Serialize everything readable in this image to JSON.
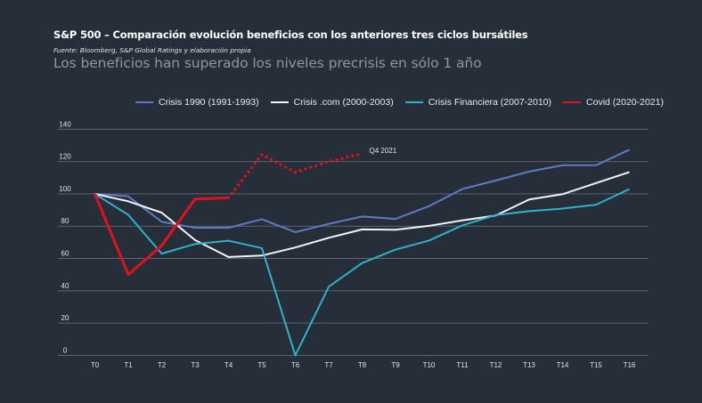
{
  "header": {
    "title": "S&P 500 – Comparación evolución beneficios con los anteriores tres ciclos bursátiles",
    "source": "Fuente: Bloomberg, S&P Global Ratings y elaboración propia",
    "subtitle": "Los beneficios han superado los niveles precrisis en sólo 1 año"
  },
  "chart_data": {
    "type": "line",
    "title": "S&P 500 – Comparación evolución beneficios con los anteriores tres ciclos bursátiles",
    "subtitle": "Los beneficios han superado los niveles precrisis en sólo 1 año",
    "xlabel": "",
    "ylabel": "",
    "categories": [
      "T0",
      "T1",
      "T2",
      "T3",
      "T4",
      "T5",
      "T6",
      "T7",
      "T8",
      "T9",
      "T10",
      "T11",
      "T12",
      "T13",
      "T14",
      "T15",
      "T16"
    ],
    "yticks": [
      0,
      20,
      40,
      60,
      80,
      100,
      120,
      140
    ],
    "ylim": [
      0,
      140
    ],
    "grid": true,
    "legend_position": "top",
    "series": [
      {
        "name": "Crisis 1990 (1991-1993)",
        "color": "#5b7cc4",
        "style": "solid",
        "values": [
          100,
          98.5,
          82.7,
          79,
          79,
          84.3,
          76.3,
          81.4,
          86,
          84.5,
          92.4,
          103,
          108.3,
          113.8,
          117.7,
          117.7,
          127.4
        ]
      },
      {
        "name": "Crisis .com (2000-2003)",
        "color": "#f2f4f6",
        "style": "solid",
        "values": [
          100,
          95.4,
          88.4,
          71.4,
          60.9,
          61.8,
          66.8,
          72.8,
          78,
          77.8,
          80.2,
          83.6,
          86.6,
          96.5,
          99.8,
          106.7,
          113.5
        ]
      },
      {
        "name": "Crisis Financiera (2007-2010)",
        "color": "#2fb3c9",
        "style": "solid",
        "values": [
          100,
          87,
          63,
          69,
          71,
          66.4,
          0,
          42.5,
          57.2,
          65.5,
          71.1,
          80.5,
          86.9,
          89.3,
          90.9,
          93.3,
          103
        ]
      },
      {
        "name": "Covid (2020-2021)",
        "color": "#e3101d",
        "style": "solid",
        "values": [
          100,
          50,
          68,
          96.8,
          97.6,
          null,
          null,
          null,
          null,
          null,
          null,
          null,
          null,
          null,
          null,
          null,
          null
        ]
      },
      {
        "name": "Covid (2020-2021) estimate",
        "color": "#e3101d",
        "style": "dotted",
        "values": [
          null,
          null,
          null,
          null,
          97.6,
          124.4,
          113.4,
          120,
          124.8,
          null,
          null,
          null,
          null,
          null,
          null,
          null,
          null
        ]
      }
    ],
    "legend": [
      {
        "label": "Crisis 1990 (1991-1993)",
        "color": "#5b7cc4"
      },
      {
        "label": "Crisis .com (2000-2003)",
        "color": "#f2f4f6"
      },
      {
        "label": "Crisis Financiera (2007-2010)",
        "color": "#2fb3c9"
      },
      {
        "label": "Covid (2020-2021)",
        "color": "#e3101d"
      }
    ],
    "annotations": [
      {
        "text": "Q4 2021",
        "x": "T8",
        "y": 124.8
      }
    ]
  }
}
